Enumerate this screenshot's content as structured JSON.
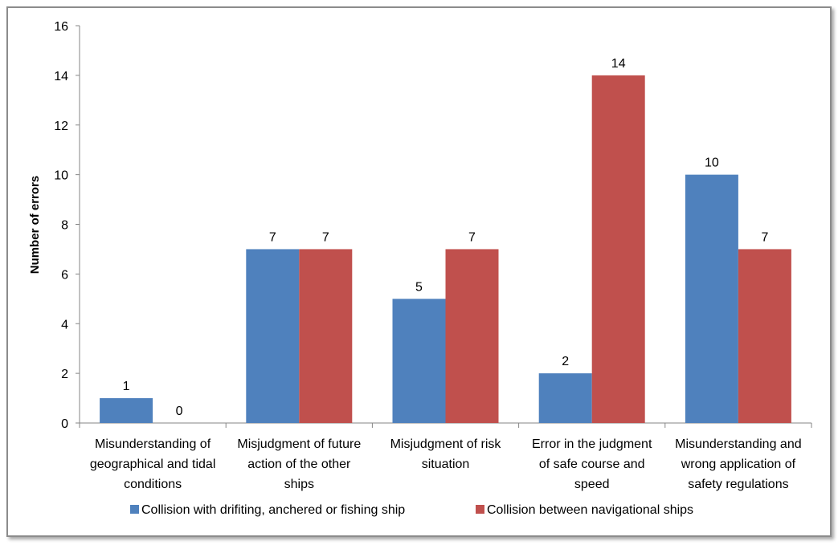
{
  "chart_data": {
    "type": "bar",
    "title": "",
    "xlabel": "",
    "ylabel": "Number of errors",
    "ylim": [
      0,
      16
    ],
    "yticks": [
      0,
      2,
      4,
      6,
      8,
      10,
      12,
      14,
      16
    ],
    "grid": false,
    "legend_position": "bottom",
    "categories": [
      [
        "Misunderstanding of",
        "geographical and tidal",
        "conditions"
      ],
      [
        "Misjudgment of future",
        "action of the other",
        "ships"
      ],
      [
        "Misjudgment of risk",
        "situation"
      ],
      [
        "Error in the judgment",
        "of safe course and",
        "speed"
      ],
      [
        "Misunderstanding and",
        "wrong application of",
        "safety regulations"
      ]
    ],
    "series": [
      {
        "name": "Collision with drifiting, anchered or fishing ship",
        "color": "#4f81bd",
        "values": [
          1,
          7,
          5,
          2,
          10
        ]
      },
      {
        "name": "Collision between navigational ships",
        "color": "#c0504d",
        "values": [
          0,
          7,
          7,
          14,
          7
        ]
      }
    ]
  }
}
